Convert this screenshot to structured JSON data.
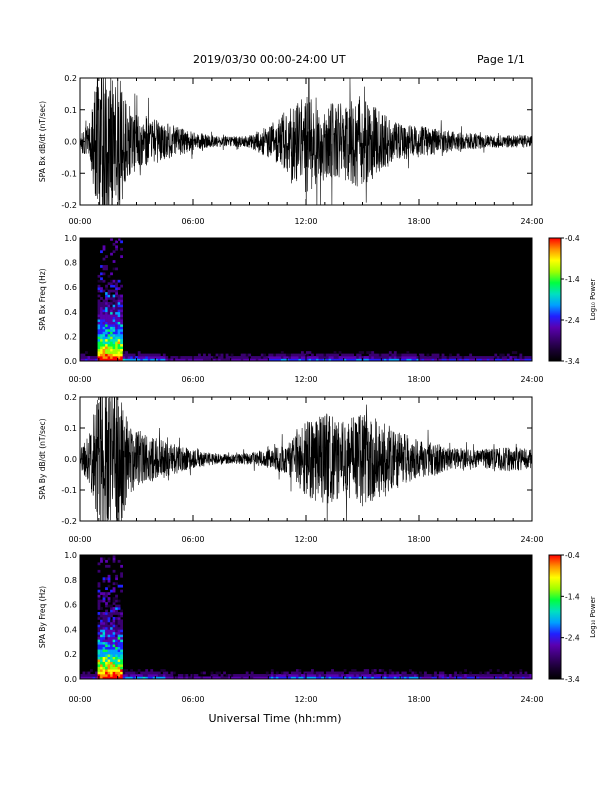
{
  "header": {
    "title": "2019/03/30  00:00-24:00 UT",
    "page": "Page 1/1"
  },
  "footer": {
    "xlabel": "Universal Time (hh:mm)"
  },
  "colors": {
    "trace": "#000000",
    "background": "#000000",
    "colormap": [
      "#000000",
      "#1a0033",
      "#3a0070",
      "#5a00b0",
      "#2020ff",
      "#00a0ff",
      "#00e0c0",
      "#00ff40",
      "#a0ff00",
      "#ffff00",
      "#ff9000",
      "#ff0000"
    ]
  },
  "chart_data": [
    {
      "type": "line",
      "ylabel": "SPA Bx dB/dt (nT/sec)",
      "ylim": [
        -0.2,
        0.2
      ],
      "yticks": [
        "0.2",
        "0.1",
        "0.0",
        "-0.1",
        "-0.2"
      ],
      "xlim": [
        0,
        24
      ],
      "xticks": [
        "00:00",
        "06:00",
        "12:00",
        "18:00",
        "24:00"
      ],
      "envelope_hours": [
        0,
        0.5,
        1,
        1.5,
        2,
        2.5,
        3,
        4,
        5,
        6,
        7,
        8,
        9,
        10,
        11,
        12,
        13,
        14,
        15,
        16,
        17,
        18,
        19,
        20,
        21,
        22,
        23,
        24
      ],
      "envelope_amplitude": [
        0.03,
        0.06,
        0.25,
        0.25,
        0.25,
        0.12,
        0.09,
        0.07,
        0.05,
        0.03,
        0.02,
        0.015,
        0.02,
        0.05,
        0.1,
        0.17,
        0.12,
        0.12,
        0.15,
        0.09,
        0.06,
        0.05,
        0.04,
        0.03,
        0.025,
        0.02,
        0.02,
        0.02
      ]
    },
    {
      "type": "heatmap",
      "ylabel": "SPA Bx Freq (Hz)",
      "ylim": [
        0.0,
        1.0
      ],
      "yticks": [
        "1.0",
        "0.8",
        "0.6",
        "0.4",
        "0.2",
        "0.0"
      ],
      "xlim": [
        0,
        24
      ],
      "xticks": [
        "00:00",
        "06:00",
        "12:00",
        "18:00",
        "24:00"
      ],
      "colorbar": {
        "label": "Log₁₀ Power",
        "ticks": [
          "-0.4",
          "-1.4",
          "-2.4",
          "-3.4"
        ],
        "range": [
          -3.4,
          -0.4
        ]
      }
    },
    {
      "type": "line",
      "ylabel": "SPA By dB/dt (nT/sec)",
      "ylim": [
        -0.2,
        0.2
      ],
      "yticks": [
        "0.2",
        "0.1",
        "0.0",
        "-0.1",
        "-0.2"
      ],
      "xlim": [
        0,
        24
      ],
      "xticks": [
        "00:00",
        "06:00",
        "12:00",
        "18:00",
        "24:00"
      ],
      "envelope_hours": [
        0,
        0.5,
        1,
        1.5,
        2,
        2.5,
        3,
        4,
        5,
        6,
        7,
        8,
        9,
        10,
        11,
        12,
        13,
        14,
        15,
        16,
        17,
        18,
        19,
        20,
        21,
        22,
        23,
        24
      ],
      "envelope_amplitude": [
        0.03,
        0.08,
        0.25,
        0.25,
        0.25,
        0.13,
        0.1,
        0.07,
        0.05,
        0.03,
        0.02,
        0.015,
        0.02,
        0.03,
        0.05,
        0.12,
        0.15,
        0.12,
        0.16,
        0.12,
        0.09,
        0.06,
        0.05,
        0.035,
        0.03,
        0.035,
        0.04,
        0.03
      ]
    },
    {
      "type": "heatmap",
      "ylabel": "SPA By Freq (Hz)",
      "ylim": [
        0.0,
        1.0
      ],
      "yticks": [
        "1.0",
        "0.8",
        "0.6",
        "0.4",
        "0.2",
        "0.0"
      ],
      "xlim": [
        0,
        24
      ],
      "xticks": [
        "00:00",
        "06:00",
        "12:00",
        "18:00",
        "24:00"
      ],
      "colorbar": {
        "label": "Log₁₀ Power",
        "ticks": [
          "-0.4",
          "-1.4",
          "-2.4",
          "-3.4"
        ],
        "range": [
          -3.4,
          -0.4
        ]
      }
    }
  ]
}
